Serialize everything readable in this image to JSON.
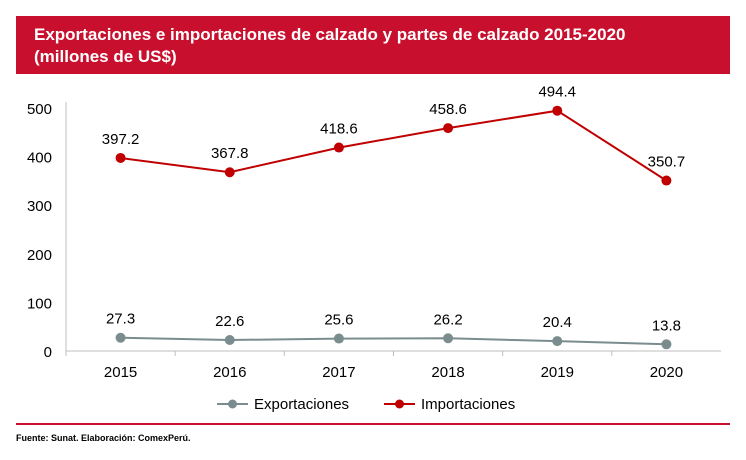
{
  "header": {
    "title_line1": "Exportaciones e importaciones de calzado y partes de calzado 2015-2020",
    "title_line2": "(millones de US$)"
  },
  "source": "Fuente: Sunat. Elaboración: ComexPerú.",
  "colors": {
    "header_bg": "#c8102e",
    "exportaciones": "#7a8c8e",
    "importaciones": "#c00000"
  },
  "chart_data": {
    "type": "line",
    "x": [
      "2015",
      "2016",
      "2017",
      "2018",
      "2019",
      "2020"
    ],
    "ylim": [
      0,
      500
    ],
    "yticks": [
      0,
      100,
      200,
      300,
      400,
      500
    ],
    "grid": false,
    "legend": "bottom",
    "series": [
      {
        "name": "Exportaciones",
        "values": [
          27.3,
          22.6,
          25.6,
          26.2,
          20.4,
          13.8
        ],
        "labels": [
          "27.3",
          "22.6",
          "25.6",
          "26.2",
          "20.4",
          "13.8"
        ]
      },
      {
        "name": "Importaciones",
        "values": [
          397.2,
          367.8,
          418.6,
          458.6,
          494.4,
          350.7
        ],
        "labels": [
          "397.2",
          "367.8",
          "418.6",
          "458.6",
          "494.4",
          "350.7"
        ]
      }
    ]
  }
}
